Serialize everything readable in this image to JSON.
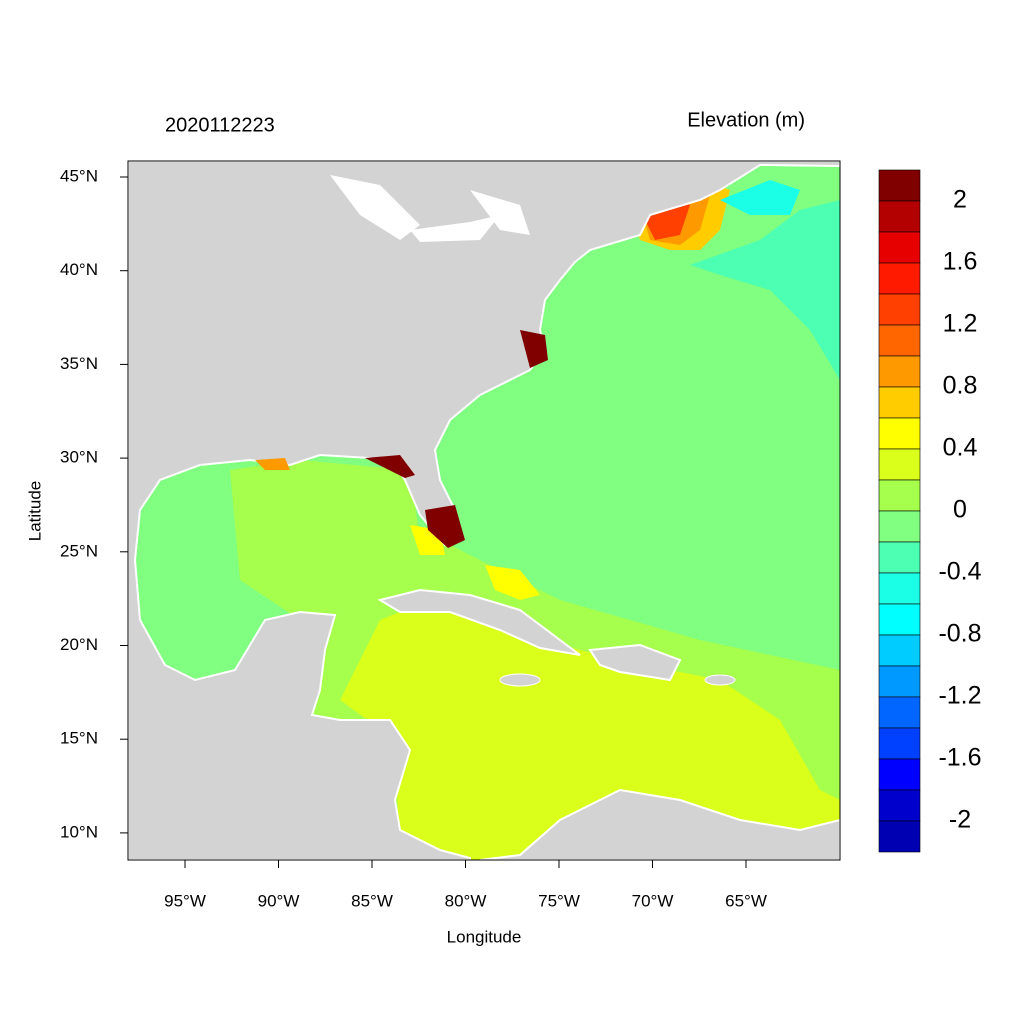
{
  "title_left": "2020112223",
  "title_right": "Elevation (m)",
  "x_axis": {
    "label": "Longitude",
    "ticks": [
      "95°W",
      "90°W",
      "85°W",
      "80°W",
      "75°W",
      "70°W",
      "65°W"
    ]
  },
  "y_axis": {
    "label": "Latitude",
    "ticks": [
      "45°N",
      "40°N",
      "35°N",
      "30°N",
      "25°N",
      "20°N",
      "15°N",
      "10°N"
    ]
  },
  "colorbar": {
    "labels": [
      2,
      1.6,
      1.2,
      0.8,
      0.4,
      0,
      -0.4,
      -0.8,
      -1.2,
      -1.6,
      -2
    ],
    "colors": [
      "#800000",
      "#b30000",
      "#e60000",
      "#ff1a00",
      "#ff4000",
      "#ff6600",
      "#ff9900",
      "#ffcc00",
      "#ffff00",
      "#d9ff1a",
      "#a6ff4d",
      "#80ff80",
      "#4dffb3",
      "#1affe6",
      "#00ffff",
      "#00ccff",
      "#0099ff",
      "#0066ff",
      "#0040ff",
      "#0000ff",
      "#0000cc",
      "#0000b3"
    ]
  }
}
